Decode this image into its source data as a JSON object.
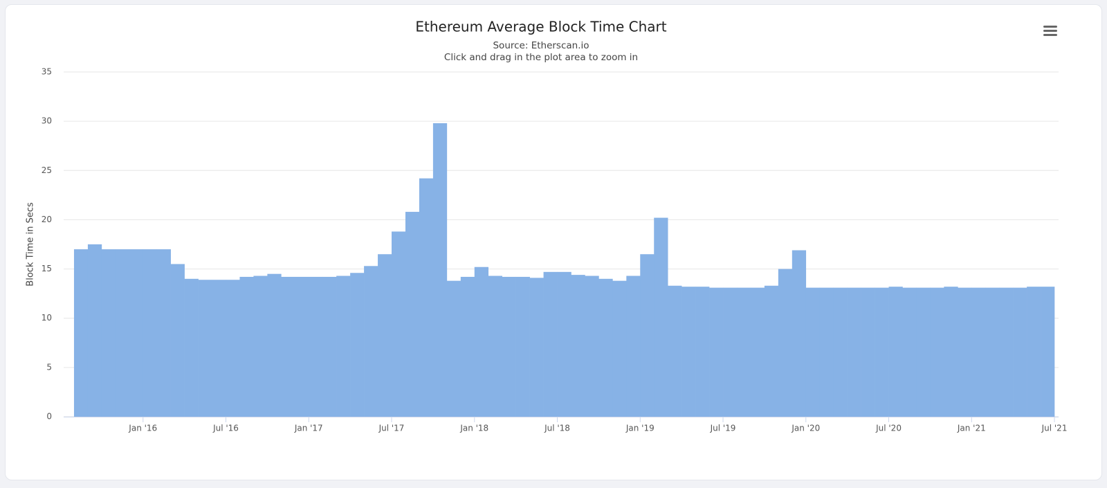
{
  "chart_data": {
    "type": "column",
    "title": "Ethereum Average Block Time Chart",
    "subtitle": "Source: Etherscan.io",
    "caption": "Click and drag in the plot area to zoom in",
    "y_label": "Block Time in Secs",
    "color": "#87b2e6",
    "grid": true,
    "x": [
      "2015-08",
      "2015-09",
      "2015-10",
      "2015-11",
      "2015-12",
      "2016-01",
      "2016-02",
      "2016-03",
      "2016-04",
      "2016-05",
      "2016-06",
      "2016-07",
      "2016-08",
      "2016-09",
      "2016-10",
      "2016-11",
      "2016-12",
      "2017-01",
      "2017-02",
      "2017-03",
      "2017-04",
      "2017-05",
      "2017-06",
      "2017-07",
      "2017-08",
      "2017-09",
      "2017-10",
      "2017-11",
      "2017-12",
      "2018-01",
      "2018-02",
      "2018-03",
      "2018-04",
      "2018-05",
      "2018-06",
      "2018-07",
      "2018-08",
      "2018-09",
      "2018-10",
      "2018-11",
      "2018-12",
      "2019-01",
      "2019-02",
      "2019-03",
      "2019-04",
      "2019-05",
      "2019-06",
      "2019-07",
      "2019-08",
      "2019-09",
      "2019-10",
      "2019-11",
      "2019-12",
      "2020-01",
      "2020-02",
      "2020-03",
      "2020-04",
      "2020-05",
      "2020-06",
      "2020-07",
      "2020-08",
      "2020-09",
      "2020-10",
      "2020-11",
      "2020-12",
      "2021-01",
      "2021-02",
      "2021-03",
      "2021-04",
      "2021-05",
      "2021-06"
    ],
    "values": [
      17,
      17.5,
      17,
      17,
      17,
      17,
      17,
      15.5,
      14,
      13.9,
      13.9,
      13.9,
      14.2,
      14.3,
      14.5,
      14.2,
      14.2,
      14.2,
      14.2,
      14.3,
      14.6,
      15.3,
      16.5,
      18.8,
      20.8,
      24.2,
      29.8,
      13.8,
      14.2,
      15.2,
      14.3,
      14.2,
      14.2,
      14.1,
      14.7,
      14.7,
      14.4,
      14.3,
      14,
      13.8,
      14.3,
      16.5,
      20.2,
      13.3,
      13.2,
      13.2,
      13.1,
      13.1,
      13.1,
      13.1,
      13.3,
      15,
      16.9,
      13.1,
      13.1,
      13.1,
      13.1,
      13.1,
      13.1,
      13.2,
      13.1,
      13.1,
      13.1,
      13.2,
      13.1,
      13.1,
      13.1,
      13.1,
      13.1,
      13.2,
      13.2
    ],
    "xlim": [
      "2015-07",
      "2021-08"
    ],
    "xticks": [
      {
        "value": "2016-01",
        "label": "Jan '16"
      },
      {
        "value": "2016-07",
        "label": "Jul '16"
      },
      {
        "value": "2017-01",
        "label": "Jan '17"
      },
      {
        "value": "2017-07",
        "label": "Jul '17"
      },
      {
        "value": "2018-01",
        "label": "Jan '18"
      },
      {
        "value": "2018-07",
        "label": "Jul '18"
      },
      {
        "value": "2019-01",
        "label": "Jan '19"
      },
      {
        "value": "2019-07",
        "label": "Jul '19"
      },
      {
        "value": "2020-01",
        "label": "Jan '20"
      },
      {
        "value": "2020-07",
        "label": "Jul '20"
      },
      {
        "value": "2021-01",
        "label": "Jan '21"
      },
      {
        "value": "2021-07",
        "label": "Jul '21"
      }
    ],
    "ylim": [
      0,
      35
    ],
    "yticks": [
      0,
      5,
      10,
      15,
      20,
      25,
      30,
      35
    ]
  }
}
